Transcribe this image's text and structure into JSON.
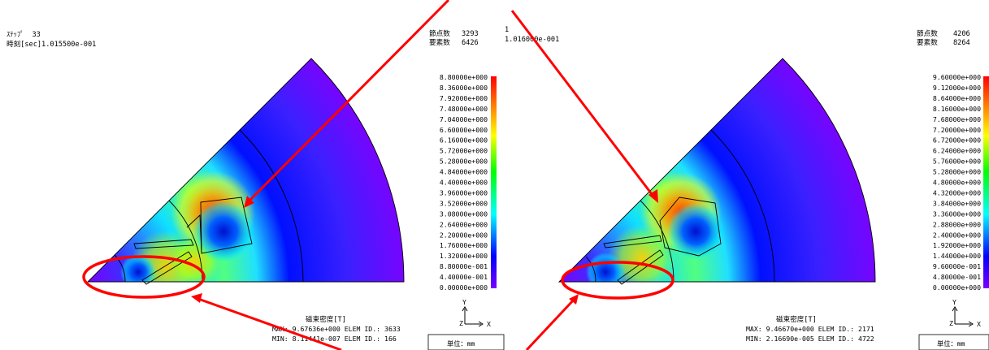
{
  "panels": [
    {
      "id": "left",
      "header": {
        "step_label": "ｽﾃｯﾌﾟ",
        "step_value": "33",
        "time_label": "時刻[sec]1.015500e-001"
      },
      "counts": {
        "nodes_label": "節点数",
        "nodes_value": "3293",
        "elems_label": "要素数",
        "elems_value": "6426"
      },
      "result_title": "磁束密度[T]",
      "max_text": "MAX: 9.67636e+000 ELEM ID.: 3633",
      "min_text": "MIN: 8.11441e-007 ELEM ID.: 166",
      "unit_text": "単位：mm",
      "axis_y": "Y",
      "axis_z": "Z",
      "axis_x": "X"
    },
    {
      "id": "right",
      "header": {
        "step_label": "",
        "step_value": "",
        "time_label": "1.016000e-001",
        "fragment": "1"
      },
      "counts": {
        "nodes_label": "節点数",
        "nodes_value": "4206",
        "elems_label": "要素数",
        "elems_value": "8264"
      },
      "result_title": "磁束密度[T]",
      "max_text": "MAX: 9.46670e+000 ELEM ID.: 2171",
      "min_text": "MIN: 2.16690e-005 ELEM ID.: 4722",
      "unit_text": "単位：mm",
      "axis_y": "Y",
      "axis_z": "Z",
      "axis_x": "X"
    }
  ],
  "chart_data": [
    {
      "type": "heatmap",
      "quantity": "磁束密度[T]",
      "colorbar_ticks": [
        "8.80000e+000",
        "8.36000e+000",
        "7.92000e+000",
        "7.48000e+000",
        "7.04000e+000",
        "6.60000e+000",
        "6.16000e+000",
        "5.72000e+000",
        "5.28000e+000",
        "4.84000e+000",
        "4.40000e+000",
        "3.96000e+000",
        "3.52000e+000",
        "3.08000e+000",
        "2.64000e+000",
        "2.20000e+000",
        "1.76000e+000",
        "1.32000e+000",
        "8.80000e-001",
        "4.40000e-001",
        "0.00000e+000"
      ],
      "range": [
        0,
        8.8
      ],
      "max": 9.67636,
      "min": 8.11441e-07
    },
    {
      "type": "heatmap",
      "quantity": "磁束密度[T]",
      "colorbar_ticks": [
        "9.60000e+000",
        "9.12000e+000",
        "8.64000e+000",
        "8.16000e+000",
        "7.68000e+000",
        "7.20000e+000",
        "6.72000e+000",
        "6.24000e+000",
        "5.76000e+000",
        "5.28000e+000",
        "4.80000e+000",
        "4.32000e+000",
        "3.84000e+000",
        "3.36000e+000",
        "2.88000e+000",
        "2.40000e+000",
        "1.92000e+000",
        "1.44000e+000",
        "9.60000e-001",
        "4.80000e-001",
        "0.00000e+000"
      ],
      "range": [
        0,
        9.6
      ],
      "max": 9.4667,
      "min": 2.1669e-05
    }
  ],
  "colors": {
    "annotation": "#ff0000",
    "scale": [
      "#7a00ff",
      "#0000ff",
      "#00ffff",
      "#00ff00",
      "#ffff00",
      "#ff8000",
      "#ff0000"
    ]
  }
}
